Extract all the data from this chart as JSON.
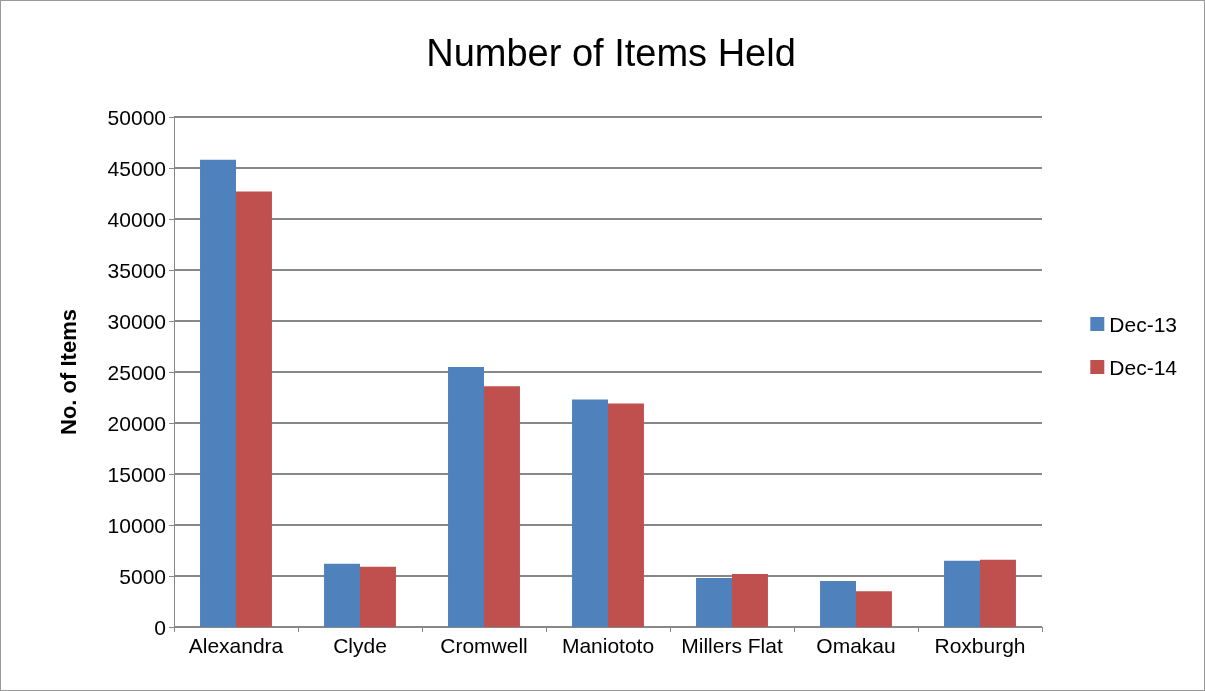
{
  "chart_data": {
    "type": "bar",
    "title": "Number of Items Held",
    "ylabel": "No. of Items",
    "categories": [
      "Alexandra",
      "Clyde",
      "Cromwell",
      "Maniototo",
      "Millers Flat",
      "Omakau",
      "Roxburgh"
    ],
    "series": [
      {
        "name": "Dec-13",
        "color": "#4f81bd",
        "values": [
          45800,
          6200,
          25500,
          22300,
          4800,
          4500,
          6500
        ]
      },
      {
        "name": "Dec-14",
        "color": "#c0504d",
        "values": [
          42700,
          5900,
          23600,
          21900,
          5200,
          3500,
          6600
        ]
      }
    ],
    "ylim": [
      0,
      50000
    ],
    "yticks": [
      0,
      5000,
      10000,
      15000,
      20000,
      25000,
      30000,
      35000,
      40000,
      45000,
      50000
    ],
    "grid": "y",
    "legend": "right"
  }
}
